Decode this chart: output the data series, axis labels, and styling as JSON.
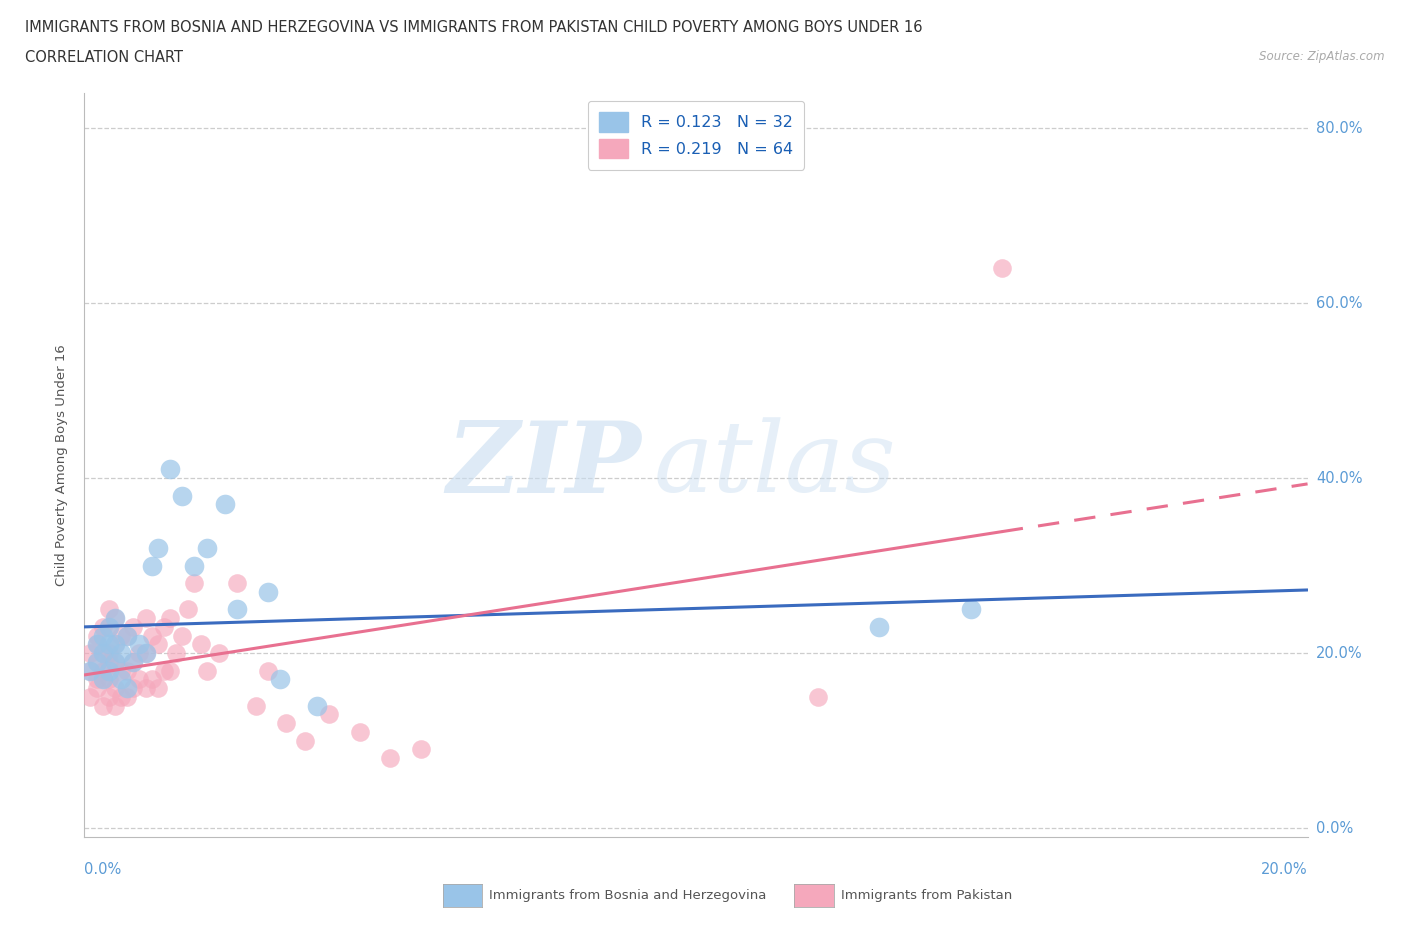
{
  "title_line1": "IMMIGRANTS FROM BOSNIA AND HERZEGOVINA VS IMMIGRANTS FROM PAKISTAN CHILD POVERTY AMONG BOYS UNDER 16",
  "title_line2": "CORRELATION CHART",
  "source": "Source: ZipAtlas.com",
  "ylabel": "Child Poverty Among Boys Under 16",
  "y_tick_vals": [
    0.0,
    0.2,
    0.4,
    0.6,
    0.8
  ],
  "y_tick_labels": [
    "0.0%",
    "20.0%",
    "40.0%",
    "60.0%",
    "80.0%"
  ],
  "x_lim": [
    0.0,
    0.2
  ],
  "y_lim": [
    -0.01,
    0.84
  ],
  "r_bosnia": 0.123,
  "n_bosnia": 32,
  "r_pakistan": 0.219,
  "n_pakistan": 64,
  "color_bosnia": "#99c4e8",
  "color_pakistan": "#f5a8bc",
  "color_bosnia_line": "#3a6bbf",
  "color_pakistan_line": "#e87090",
  "legend_label_bosnia": "Immigrants from Bosnia and Herzegovina",
  "legend_label_pakistan": "Immigrants from Pakistan",
  "watermark_zip": "ZIP",
  "watermark_atlas": "atlas",
  "tick_color": "#5b9bd5",
  "bosnia_x": [
    0.001,
    0.002,
    0.002,
    0.003,
    0.003,
    0.003,
    0.004,
    0.004,
    0.004,
    0.005,
    0.005,
    0.005,
    0.006,
    0.006,
    0.007,
    0.007,
    0.008,
    0.009,
    0.01,
    0.011,
    0.012,
    0.014,
    0.016,
    0.018,
    0.02,
    0.023,
    0.025,
    0.03,
    0.032,
    0.038,
    0.13,
    0.145
  ],
  "bosnia_y": [
    0.18,
    0.19,
    0.21,
    0.2,
    0.22,
    0.17,
    0.18,
    0.21,
    0.23,
    0.19,
    0.21,
    0.24,
    0.2,
    0.17,
    0.22,
    0.16,
    0.19,
    0.21,
    0.2,
    0.3,
    0.32,
    0.41,
    0.38,
    0.3,
    0.32,
    0.37,
    0.25,
    0.27,
    0.17,
    0.14,
    0.23,
    0.25
  ],
  "pakistan_x": [
    0.001,
    0.001,
    0.001,
    0.002,
    0.002,
    0.002,
    0.002,
    0.002,
    0.003,
    0.003,
    0.003,
    0.003,
    0.003,
    0.004,
    0.004,
    0.004,
    0.004,
    0.004,
    0.004,
    0.005,
    0.005,
    0.005,
    0.005,
    0.005,
    0.006,
    0.006,
    0.006,
    0.007,
    0.007,
    0.007,
    0.008,
    0.008,
    0.008,
    0.009,
    0.009,
    0.01,
    0.01,
    0.01,
    0.011,
    0.011,
    0.012,
    0.012,
    0.013,
    0.013,
    0.014,
    0.014,
    0.015,
    0.016,
    0.017,
    0.018,
    0.019,
    0.02,
    0.022,
    0.025,
    0.028,
    0.03,
    0.033,
    0.036,
    0.04,
    0.045,
    0.05,
    0.055,
    0.12,
    0.15
  ],
  "pakistan_y": [
    0.15,
    0.18,
    0.2,
    0.16,
    0.17,
    0.19,
    0.21,
    0.22,
    0.14,
    0.17,
    0.18,
    0.2,
    0.23,
    0.15,
    0.17,
    0.19,
    0.2,
    0.23,
    0.25,
    0.14,
    0.16,
    0.19,
    0.21,
    0.24,
    0.15,
    0.18,
    0.22,
    0.15,
    0.18,
    0.22,
    0.16,
    0.19,
    0.23,
    0.17,
    0.2,
    0.16,
    0.2,
    0.24,
    0.17,
    0.22,
    0.16,
    0.21,
    0.18,
    0.23,
    0.18,
    0.24,
    0.2,
    0.22,
    0.25,
    0.28,
    0.21,
    0.18,
    0.2,
    0.28,
    0.14,
    0.18,
    0.12,
    0.1,
    0.13,
    0.11,
    0.08,
    0.09,
    0.15,
    0.64
  ]
}
